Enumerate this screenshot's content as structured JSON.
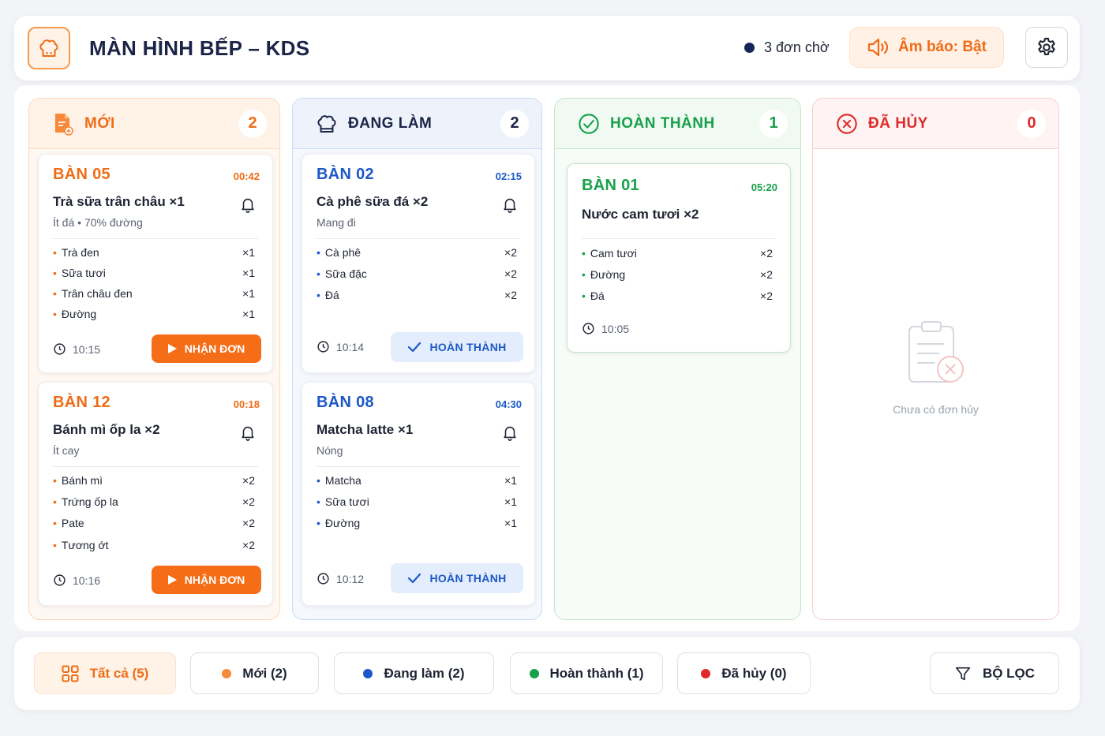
{
  "header": {
    "title": "MÀN HÌNH BẾP – KDS",
    "logo_icon": "chef-hat-icon",
    "pending_label": "3 đơn chờ",
    "sound_label": "Âm báo: Bật",
    "settings_icon": "gear-icon"
  },
  "columns": {
    "new": {
      "label": "MỚI",
      "count": "2",
      "color": "#ef6c17"
    },
    "doing": {
      "label": "ĐANG LÀM",
      "count": "2",
      "color": "#1a2547"
    },
    "done": {
      "label": "HOÀN THÀNH",
      "count": "1",
      "color": "#18a04a"
    },
    "cancel": {
      "label": "ĐÃ HỦY",
      "count": "0",
      "color": "#e02a2a"
    }
  },
  "orders": {
    "b05": {
      "table": "BÀN 05",
      "elapsed": "00:42",
      "item": "Trà sữa trân châu ×1",
      "note": "Ít đá • 70% đường",
      "ingredients": [
        {
          "name": "Trà đen",
          "qty": "×1"
        },
        {
          "name": "Sữa tươi",
          "qty": "×1"
        },
        {
          "name": "Trân châu đen",
          "qty": "×1"
        },
        {
          "name": "Đường",
          "qty": "×1"
        }
      ],
      "time": "10:15",
      "action": "NHẬN ĐƠN"
    },
    "b12": {
      "table": "BÀN 12",
      "elapsed": "00:18",
      "item": "Bánh mì ốp la ×2",
      "note": "Ít cay",
      "ingredients": [
        {
          "name": "Bánh mì",
          "qty": "×2"
        },
        {
          "name": "Trứng ốp la",
          "qty": "×2"
        },
        {
          "name": "Pate",
          "qty": "×2"
        },
        {
          "name": "Tương ớt",
          "qty": "×2"
        }
      ],
      "time": "10:16",
      "action": "NHẬN ĐƠN"
    },
    "b02": {
      "table": "BÀN 02",
      "elapsed": "02:15",
      "item": "Cà phê sữa đá ×2",
      "note": "Mang đi",
      "ingredients": [
        {
          "name": "Cà phê",
          "qty": "×2"
        },
        {
          "name": "Sữa đặc",
          "qty": "×2"
        },
        {
          "name": "Đá",
          "qty": "×2"
        }
      ],
      "time": "10:14",
      "action": "HOÀN THÀNH"
    },
    "b08": {
      "table": "BÀN 08",
      "elapsed": "04:30",
      "item": "Matcha latte ×1",
      "note": "Nóng",
      "ingredients": [
        {
          "name": "Matcha",
          "qty": "×1"
        },
        {
          "name": "Sữa tươi",
          "qty": "×1"
        },
        {
          "name": "Đường",
          "qty": "×1"
        }
      ],
      "time": "10:12",
      "action": "HOÀN THÀNH"
    },
    "b01": {
      "table": "BÀN 01",
      "elapsed": "05:20",
      "item": "Nước cam tươi ×2",
      "ingredients": [
        {
          "name": "Cam tươi",
          "qty": "×2"
        },
        {
          "name": "Đường",
          "qty": "×2"
        },
        {
          "name": "Đá",
          "qty": "×2"
        }
      ],
      "time": "10:05"
    }
  },
  "cancel_empty": {
    "text": "Chưa có đơn hủy",
    "icon": "clipboard-x-icon"
  },
  "footer": {
    "all": "Tất cả (5)",
    "new": "Mới (2)",
    "doing": "Đang làm (2)",
    "done": "Hoàn thành (1)",
    "cancel": "Đã hủy (0)",
    "filter": "BỘ LỌC"
  }
}
